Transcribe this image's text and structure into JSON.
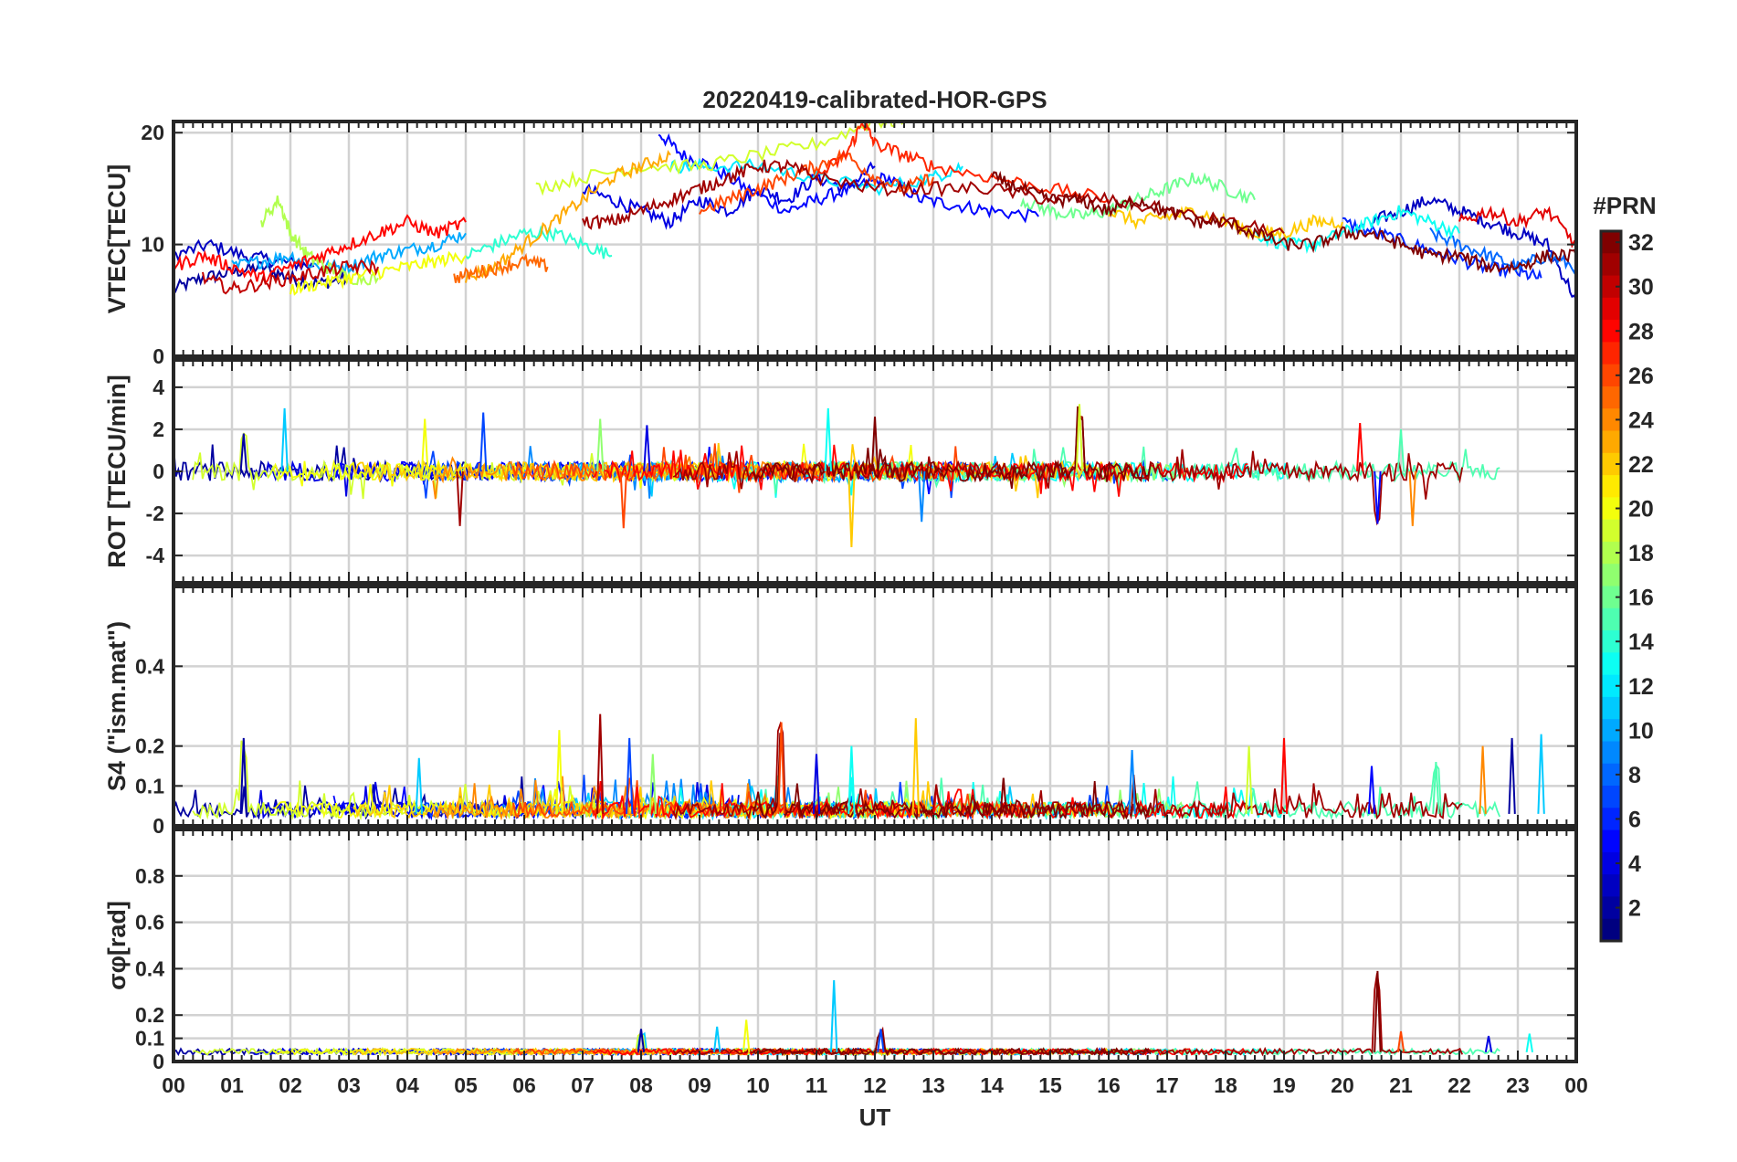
{
  "chart_data": {
    "type": "line",
    "title": "20220419-calibrated-HOR-GPS",
    "xlabel": "UT",
    "x_ticks": [
      "00",
      "01",
      "02",
      "03",
      "04",
      "05",
      "06",
      "07",
      "08",
      "09",
      "10",
      "11",
      "12",
      "13",
      "14",
      "15",
      "16",
      "17",
      "18",
      "19",
      "20",
      "21",
      "22",
      "23",
      "00"
    ],
    "xlim": [
      0,
      24
    ],
    "grid": true,
    "colorbar": {
      "label": "#PRN",
      "range": [
        1,
        32
      ],
      "ticks": [
        2,
        4,
        6,
        8,
        10,
        12,
        14,
        16,
        18,
        20,
        22,
        24,
        26,
        28,
        30,
        32
      ],
      "colormap": "jet"
    },
    "panels": [
      {
        "id": "vtec",
        "ylabel": "VTEC[TECU]",
        "ylim": [
          0,
          21
        ],
        "yticks": [
          0,
          10,
          20
        ],
        "series": [
          {
            "prn": 2,
            "x": [
              0.0,
              0.5,
              1.0,
              1.5,
              2.0,
              2.5,
              3.0
            ],
            "y": [
              6,
              7,
              7.5,
              8,
              7,
              6.5,
              7
            ]
          },
          {
            "prn": 3,
            "x": [
              0.0,
              0.6,
              1.2,
              1.8,
              2.4
            ],
            "y": [
              9,
              10,
              9,
              8.5,
              8
            ]
          },
          {
            "prn": 5,
            "x": [
              8.3,
              8.7,
              9.2,
              9.8,
              10.5,
              11.0,
              11.6,
              12.2,
              12.8,
              13.4,
              14.0,
              14.8
            ],
            "y": [
              20,
              18,
              17,
              15,
              13,
              14,
              15,
              16,
              14,
              13.5,
              13,
              12.5
            ]
          },
          {
            "prn": 4,
            "x": [
              7.0,
              7.5,
              8.0,
              8.5,
              9.0,
              9.5,
              10.0,
              10.5,
              11.0,
              11.5,
              12.0
            ],
            "y": [
              15,
              14,
              13,
              12,
              14,
              13,
              15,
              14,
              16,
              15,
              17
            ]
          },
          {
            "prn": 3,
            "x": [
              20.5,
              21.0,
              21.5,
              22.0,
              22.5,
              23.0,
              23.5,
              24.0
            ],
            "y": [
              12,
              13,
              14,
              13,
              12,
              11,
              10,
              5
            ]
          },
          {
            "prn": 6,
            "x": [
              20.0,
              20.6,
              21.2,
              21.8,
              22.4,
              23.0,
              23.4
            ],
            "y": [
              12,
              11,
              10,
              9,
              8,
              7.5,
              7
            ]
          },
          {
            "prn": 8,
            "x": [
              21.5,
              22.0,
              22.5,
              23.0,
              23.5,
              24.0
            ],
            "y": [
              11,
              10,
              9,
              8,
              9,
              8
            ]
          },
          {
            "prn": 10,
            "x": [
              1.0,
              1.5,
              2.0,
              2.5,
              3.0,
              3.5,
              4.0,
              4.5,
              5.0
            ],
            "y": [
              8,
              8.5,
              9,
              8,
              8,
              9,
              9.5,
              10,
              11
            ]
          },
          {
            "prn": 12,
            "x": [
              8.5,
              9.0,
              10.0,
              11.0,
              12.0,
              13.0,
              13.5
            ],
            "y": [
              17,
              17,
              17,
              16,
              15,
              16,
              17
            ]
          },
          {
            "prn": 13,
            "x": [
              18.5,
              19.0,
              19.5,
              20.0,
              20.5,
              21.0,
              21.5,
              22.0
            ],
            "y": [
              11,
              10,
              10,
              11,
              12,
              13,
              12,
              11
            ]
          },
          {
            "prn": 14,
            "x": [
              5.0,
              5.5,
              6.0,
              6.5,
              7.0,
              7.5
            ],
            "y": [
              9,
              10,
              11,
              11,
              10,
              9
            ]
          },
          {
            "prn": 16,
            "x": [
              14.5,
              15.0,
              15.5,
              16.0,
              16.5,
              17.0,
              17.5,
              18.0,
              18.5
            ],
            "y": [
              14,
              13,
              12.5,
              13,
              14,
              15,
              16,
              15,
              14
            ]
          },
          {
            "prn": 18,
            "x": [
              1.5,
              1.8,
              2.0,
              2.3,
              2.6,
              3.0,
              3.5
            ],
            "y": [
              12,
              14,
              11,
              9,
              8,
              7,
              7
            ]
          },
          {
            "prn": 19,
            "x": [
              6.2,
              7.0,
              8.0,
              9.0,
              10.0,
              11.0,
              12.0,
              12.5
            ],
            "y": [
              15,
              16,
              17,
              17,
              18,
              19,
              21,
              21
            ]
          },
          {
            "prn": 20,
            "x": [
              2.0,
              2.5,
              3.0,
              3.5,
              4.0,
              4.5,
              5.0
            ],
            "y": [
              6,
              6.5,
              7,
              7.5,
              8,
              8.5,
              9
            ]
          },
          {
            "prn": 22,
            "x": [
              16.0,
              16.5,
              17.0,
              17.5,
              18.0,
              18.5,
              19.0,
              19.5,
              20.0
            ],
            "y": [
              13,
              12,
              12.5,
              13,
              12,
              11,
              11,
              12,
              12
            ]
          },
          {
            "prn": 23,
            "x": [
              5.0,
              5.5,
              6.0,
              6.5,
              7.0,
              7.5,
              8.0,
              8.5
            ],
            "y": [
              7,
              8,
              10,
              12,
              14,
              16,
              17,
              18
            ]
          },
          {
            "prn": 25,
            "x": [
              4.8,
              5.2,
              5.6,
              6.0,
              6.4
            ],
            "y": [
              7,
              7.5,
              8,
              8.5,
              8
            ]
          },
          {
            "prn": 26,
            "x": [
              9.0,
              9.5,
              10.0,
              10.5,
              11.0,
              11.5,
              12.0,
              12.5,
              13.0
            ],
            "y": [
              13,
              14,
              15,
              16,
              17,
              18,
              16,
              15,
              16
            ]
          },
          {
            "prn": 27,
            "x": [
              11.0,
              11.5,
              11.8,
              12.0,
              12.5,
              13.0,
              14.0,
              15.0,
              16.0
            ],
            "y": [
              16,
              18,
              21,
              19,
              18,
              17,
              16,
              15,
              14
            ]
          },
          {
            "prn": 28,
            "x": [
              0.0,
              0.5,
              1.0,
              1.5,
              2.0,
              2.5,
              3.0,
              3.5,
              4.0,
              4.5,
              5.0
            ],
            "y": [
              8,
              9,
              8,
              7,
              8,
              9,
              10,
              11,
              12,
              11,
              12
            ]
          },
          {
            "prn": 29,
            "x": [
              22.0,
              22.5,
              23.0,
              23.5,
              24.0
            ],
            "y": [
              12,
              13,
              12,
              13,
              10
            ]
          },
          {
            "prn": 30,
            "x": [
              0.5,
              1.0,
              1.5,
              2.0,
              2.5,
              3.0,
              3.5
            ],
            "y": [
              7,
              6,
              6.5,
              7,
              7.5,
              8,
              8
            ]
          },
          {
            "prn": 31,
            "x": [
              7.0,
              7.5,
              8.0,
              8.5,
              9.0,
              9.5,
              10.0,
              10.5,
              11.0,
              12.0,
              13.0,
              14.0,
              15.0,
              16.0,
              17.0,
              18.0,
              19.0
            ],
            "y": [
              12,
              12,
              13,
              14,
              15,
              16,
              17,
              17,
              16,
              15,
              15,
              15,
              14,
              14,
              13,
              12,
              11
            ]
          },
          {
            "prn": 32,
            "x": [
              14.0,
              14.5,
              15.0,
              15.5,
              16.0,
              16.5,
              17.0,
              17.5,
              18.0,
              18.5,
              19.0,
              19.5,
              20.0,
              20.5,
              21.0,
              21.5,
              22.0,
              22.5,
              23.0,
              23.5,
              24.0
            ],
            "y": [
              16,
              15,
              14,
              14,
              13,
              14,
              13,
              12,
              12,
              11,
              10,
              10,
              11,
              11,
              10,
              9,
              9,
              8,
              8,
              9,
              9
            ]
          }
        ]
      },
      {
        "id": "rot",
        "ylabel": "ROT [TECU/min]",
        "ylim": [
          -5.3,
          5.3
        ],
        "yticks": [
          -4,
          -2,
          0,
          2,
          4
        ],
        "noise": "scattered around 0 with amplitude ~0.4; spikes to about ±3 near 01-02, 04-05, 07-08, 11-12, 15.5, 20-21 UT"
      },
      {
        "id": "s4",
        "ylabel": "S4 (\"ism.mat\")",
        "ylim": [
          0,
          0.6
        ],
        "yticks": [
          0,
          0.1,
          0.2,
          0.4
        ],
        "noise": "background ~0.02-0.05 with bursts up to ~0.28 near 07, 08, 10.5, 12.7, 16.5, 22-23 UT"
      },
      {
        "id": "sigma_phi",
        "ylabel": "σφ[rad]",
        "ylim": [
          0,
          1.0
        ],
        "yticks": [
          0,
          0.1,
          0.2,
          0.4,
          0.6,
          0.8
        ],
        "noise": "background ~0.03-0.06; spikes ~0.35 at 11.3 UT (PRN 11), ~0.39 at 20.6 UT (PRN 32)"
      }
    ]
  }
}
